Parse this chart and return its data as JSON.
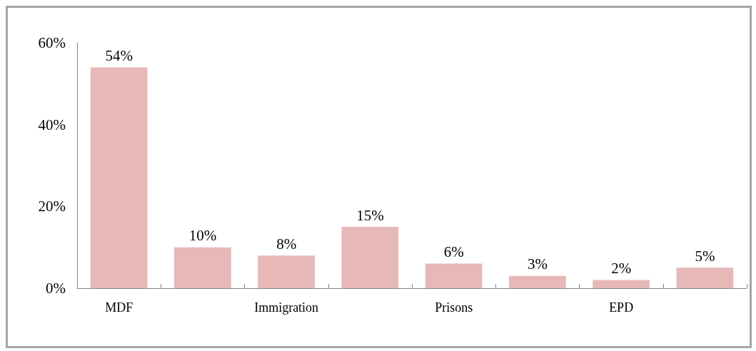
{
  "chart_data": {
    "type": "bar",
    "categories": [
      "MDF",
      null,
      "Immigration",
      null,
      "Prisons",
      null,
      "EPD",
      null
    ],
    "values": [
      54,
      10,
      8,
      15,
      6,
      3,
      2,
      5
    ],
    "value_labels": [
      "54%",
      "10%",
      "8%",
      "15%",
      "6%",
      "3%",
      "2%",
      "5%"
    ],
    "color": "#e6b8b7",
    "ylim": [
      0,
      60
    ],
    "yticks": [
      {
        "value": 0,
        "label": "0%"
      },
      {
        "value": 20,
        "label": "20%"
      },
      {
        "value": 40,
        "label": "40%"
      },
      {
        "value": 60,
        "label": "60%"
      }
    ],
    "grid": false
  }
}
